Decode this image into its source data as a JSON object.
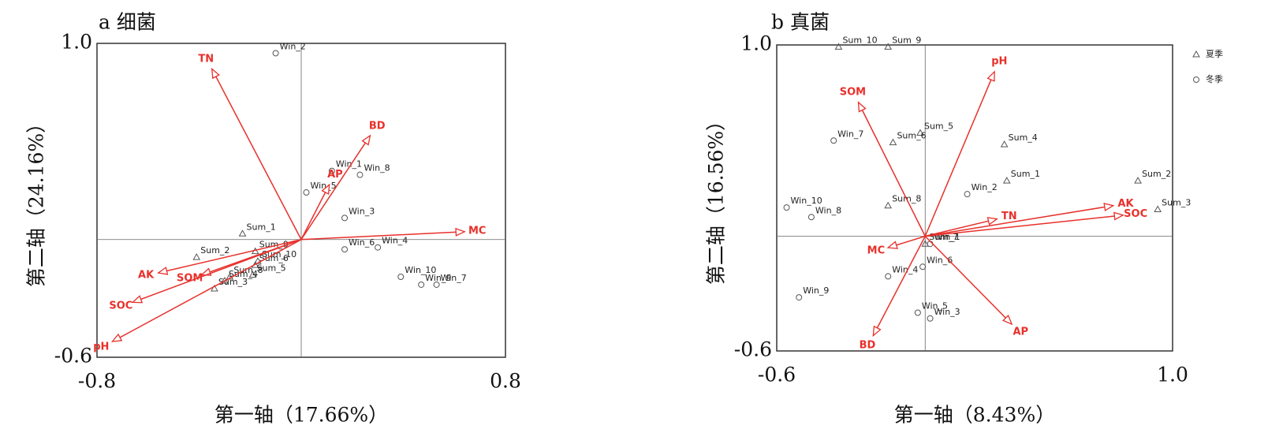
{
  "chart_data": [
    {
      "type": "biplot",
      "title": "a 细菌",
      "xlabel": "第一轴（17.66%）",
      "ylabel": "第二轴（24.16%）",
      "xlim": [
        -0.8,
        0.8
      ],
      "ylim": [
        -0.6,
        1.0
      ],
      "xticks": [
        -0.8,
        0.8
      ],
      "yticks": [
        {
          "value": 1.0,
          "label": "1.0"
        },
        -0.6
      ],
      "zero_lines": true,
      "series": [
        {
          "marker": "triangle",
          "color": "#555555",
          "labels": [
            "Sum_1",
            "Sum_2",
            "Sum_9",
            "Sum_10",
            "Sum_6",
            "Sum_8",
            "Sum_5",
            "Sum_4",
            "Sum_3"
          ],
          "x": [
            -0.23,
            -0.41,
            -0.18,
            -0.17,
            -0.18,
            -0.28,
            -0.19,
            -0.3,
            -0.34
          ],
          "values": [
            0.03,
            -0.09,
            -0.06,
            -0.11,
            -0.13,
            -0.19,
            -0.18,
            -0.21,
            -0.25
          ]
        },
        {
          "marker": "circle",
          "color": "#555555",
          "labels": [
            "Win_2",
            "Win_1",
            "Win_8",
            "Win_5",
            "Win_3",
            "Win_6",
            "Win_4",
            "Win_10",
            "Win_9",
            "Win_7"
          ],
          "x": [
            -0.1,
            0.12,
            0.23,
            0.02,
            0.17,
            0.17,
            0.3,
            0.39,
            0.47,
            0.53
          ],
          "values": [
            0.95,
            0.35,
            0.33,
            0.24,
            0.11,
            -0.05,
            -0.04,
            -0.19,
            -0.23,
            -0.23
          ]
        }
      ],
      "vectors": {
        "color": "#e8302b",
        "labels": [
          "TN",
          "BD",
          "AP",
          "MC",
          "AK",
          "SOM",
          "SOC",
          "pH"
        ],
        "x": [
          -0.35,
          0.27,
          0.11,
          0.64,
          -0.56,
          -0.39,
          -0.66,
          -0.74
        ],
        "values": [
          0.87,
          0.53,
          0.28,
          0.04,
          -0.17,
          -0.18,
          -0.32,
          -0.52
        ]
      }
    },
    {
      "type": "biplot",
      "title": "b 真菌",
      "xlabel": "第一轴（8.43%）",
      "ylabel": "第二轴（16.56%）",
      "xlim": [
        -0.6,
        1.0
      ],
      "ylim": [
        -0.6,
        1.0
      ],
      "xticks": [
        -0.6,
        {
          "value": 1.0,
          "label": "1.0"
        }
      ],
      "yticks": [
        {
          "value": 1.0,
          "label": "1.0"
        },
        -0.6
      ],
      "zero_lines": true,
      "legend": "upper right",
      "series": [
        {
          "name": "夏季",
          "marker": "triangle",
          "color": "#555555",
          "labels": [
            "Sum_10",
            "Sum_9",
            "Sum_5",
            "Sum_6",
            "Sum_4",
            "Sum_1",
            "Sum_2",
            "Sum_3",
            "Sum_8",
            "Sum_7"
          ],
          "x": [
            -0.35,
            -0.15,
            -0.02,
            -0.13,
            0.32,
            0.33,
            0.86,
            0.94,
            -0.15,
            0.0
          ],
          "values": [
            0.99,
            0.99,
            0.54,
            0.49,
            0.48,
            0.29,
            0.29,
            0.14,
            0.16,
            -0.04
          ]
        },
        {
          "name": "冬季",
          "marker": "circle",
          "color": "#555555",
          "labels": [
            "Win_7",
            "Win_2",
            "Win_10",
            "Win_8",
            "Win_1",
            "Win_6",
            "Win_4",
            "Win_9",
            "Win_5",
            "Win_3"
          ],
          "x": [
            -0.37,
            0.17,
            -0.56,
            -0.46,
            0.02,
            -0.01,
            -0.15,
            -0.51,
            -0.03,
            0.02
          ],
          "values": [
            0.5,
            0.22,
            0.15,
            0.1,
            -0.04,
            -0.16,
            -0.21,
            -0.32,
            -0.4,
            -0.43
          ]
        }
      ],
      "vectors": {
        "color": "#e8302b",
        "labels": [
          "pH",
          "SOM",
          "AK",
          "SOC",
          "TN",
          "MC",
          "BD",
          "AP"
        ],
        "x": [
          0.28,
          -0.27,
          0.76,
          0.8,
          0.29,
          -0.15,
          -0.21,
          0.35
        ],
        "values": [
          0.86,
          0.7,
          0.16,
          0.11,
          0.09,
          -0.06,
          -0.52,
          -0.46
        ]
      }
    }
  ]
}
